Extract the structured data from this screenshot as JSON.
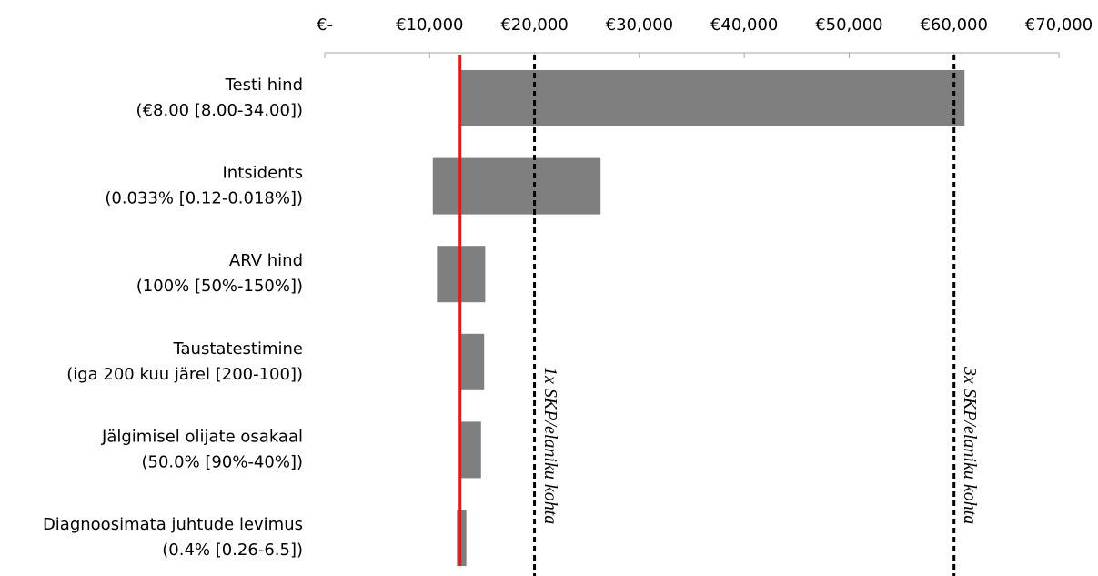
{
  "chart_data": {
    "type": "floating_bar",
    "orientation": "horizontal",
    "categories": [
      [
        "Testi hind",
        "(€8.00 [8.00-34.00])"
      ],
      [
        "Intsidents",
        "(0.033% [0.12-0.018%])"
      ],
      [
        "ARV hind",
        "(100% [50%-150%])"
      ],
      [
        "Taustatestimine",
        "(iga 200 kuu järel [200-100])"
      ],
      [
        "Jälgimisel olijate osakaal",
        "(50.0% [90%-40%])"
      ],
      [
        "Diagnoosimata juhtude levimus",
        "(0.4% [0.26-6.5])"
      ]
    ],
    "low": [
      12900,
      10300,
      10700,
      12900,
      12900,
      12600
    ],
    "high": [
      61000,
      26300,
      15300,
      15200,
      14900,
      13500
    ],
    "color": "#7f7f7f",
    "xlim": [
      0,
      70000
    ],
    "xticks": [
      {
        "value": 0,
        "label": "€-"
      },
      {
        "value": 10000,
        "label": "€10,000"
      },
      {
        "value": 20000,
        "label": "€20,000"
      },
      {
        "value": 30000,
        "label": "€30,000"
      },
      {
        "value": 40000,
        "label": "€40,000"
      },
      {
        "value": 50000,
        "label": "€50,000"
      },
      {
        "value": 60000,
        "label": "€60,000"
      },
      {
        "value": 70000,
        "label": "€70,000"
      }
    ],
    "reference_lines": [
      {
        "value": 12900,
        "color": "#e31a1c",
        "dashed": false
      },
      {
        "value": 20000,
        "color": "#000000",
        "dashed": true,
        "label": "1x SKP/elaniku kohta"
      },
      {
        "value": 60000,
        "color": "#000000",
        "dashed": true,
        "label": "3x SKP/elaniku kohta"
      }
    ]
  }
}
